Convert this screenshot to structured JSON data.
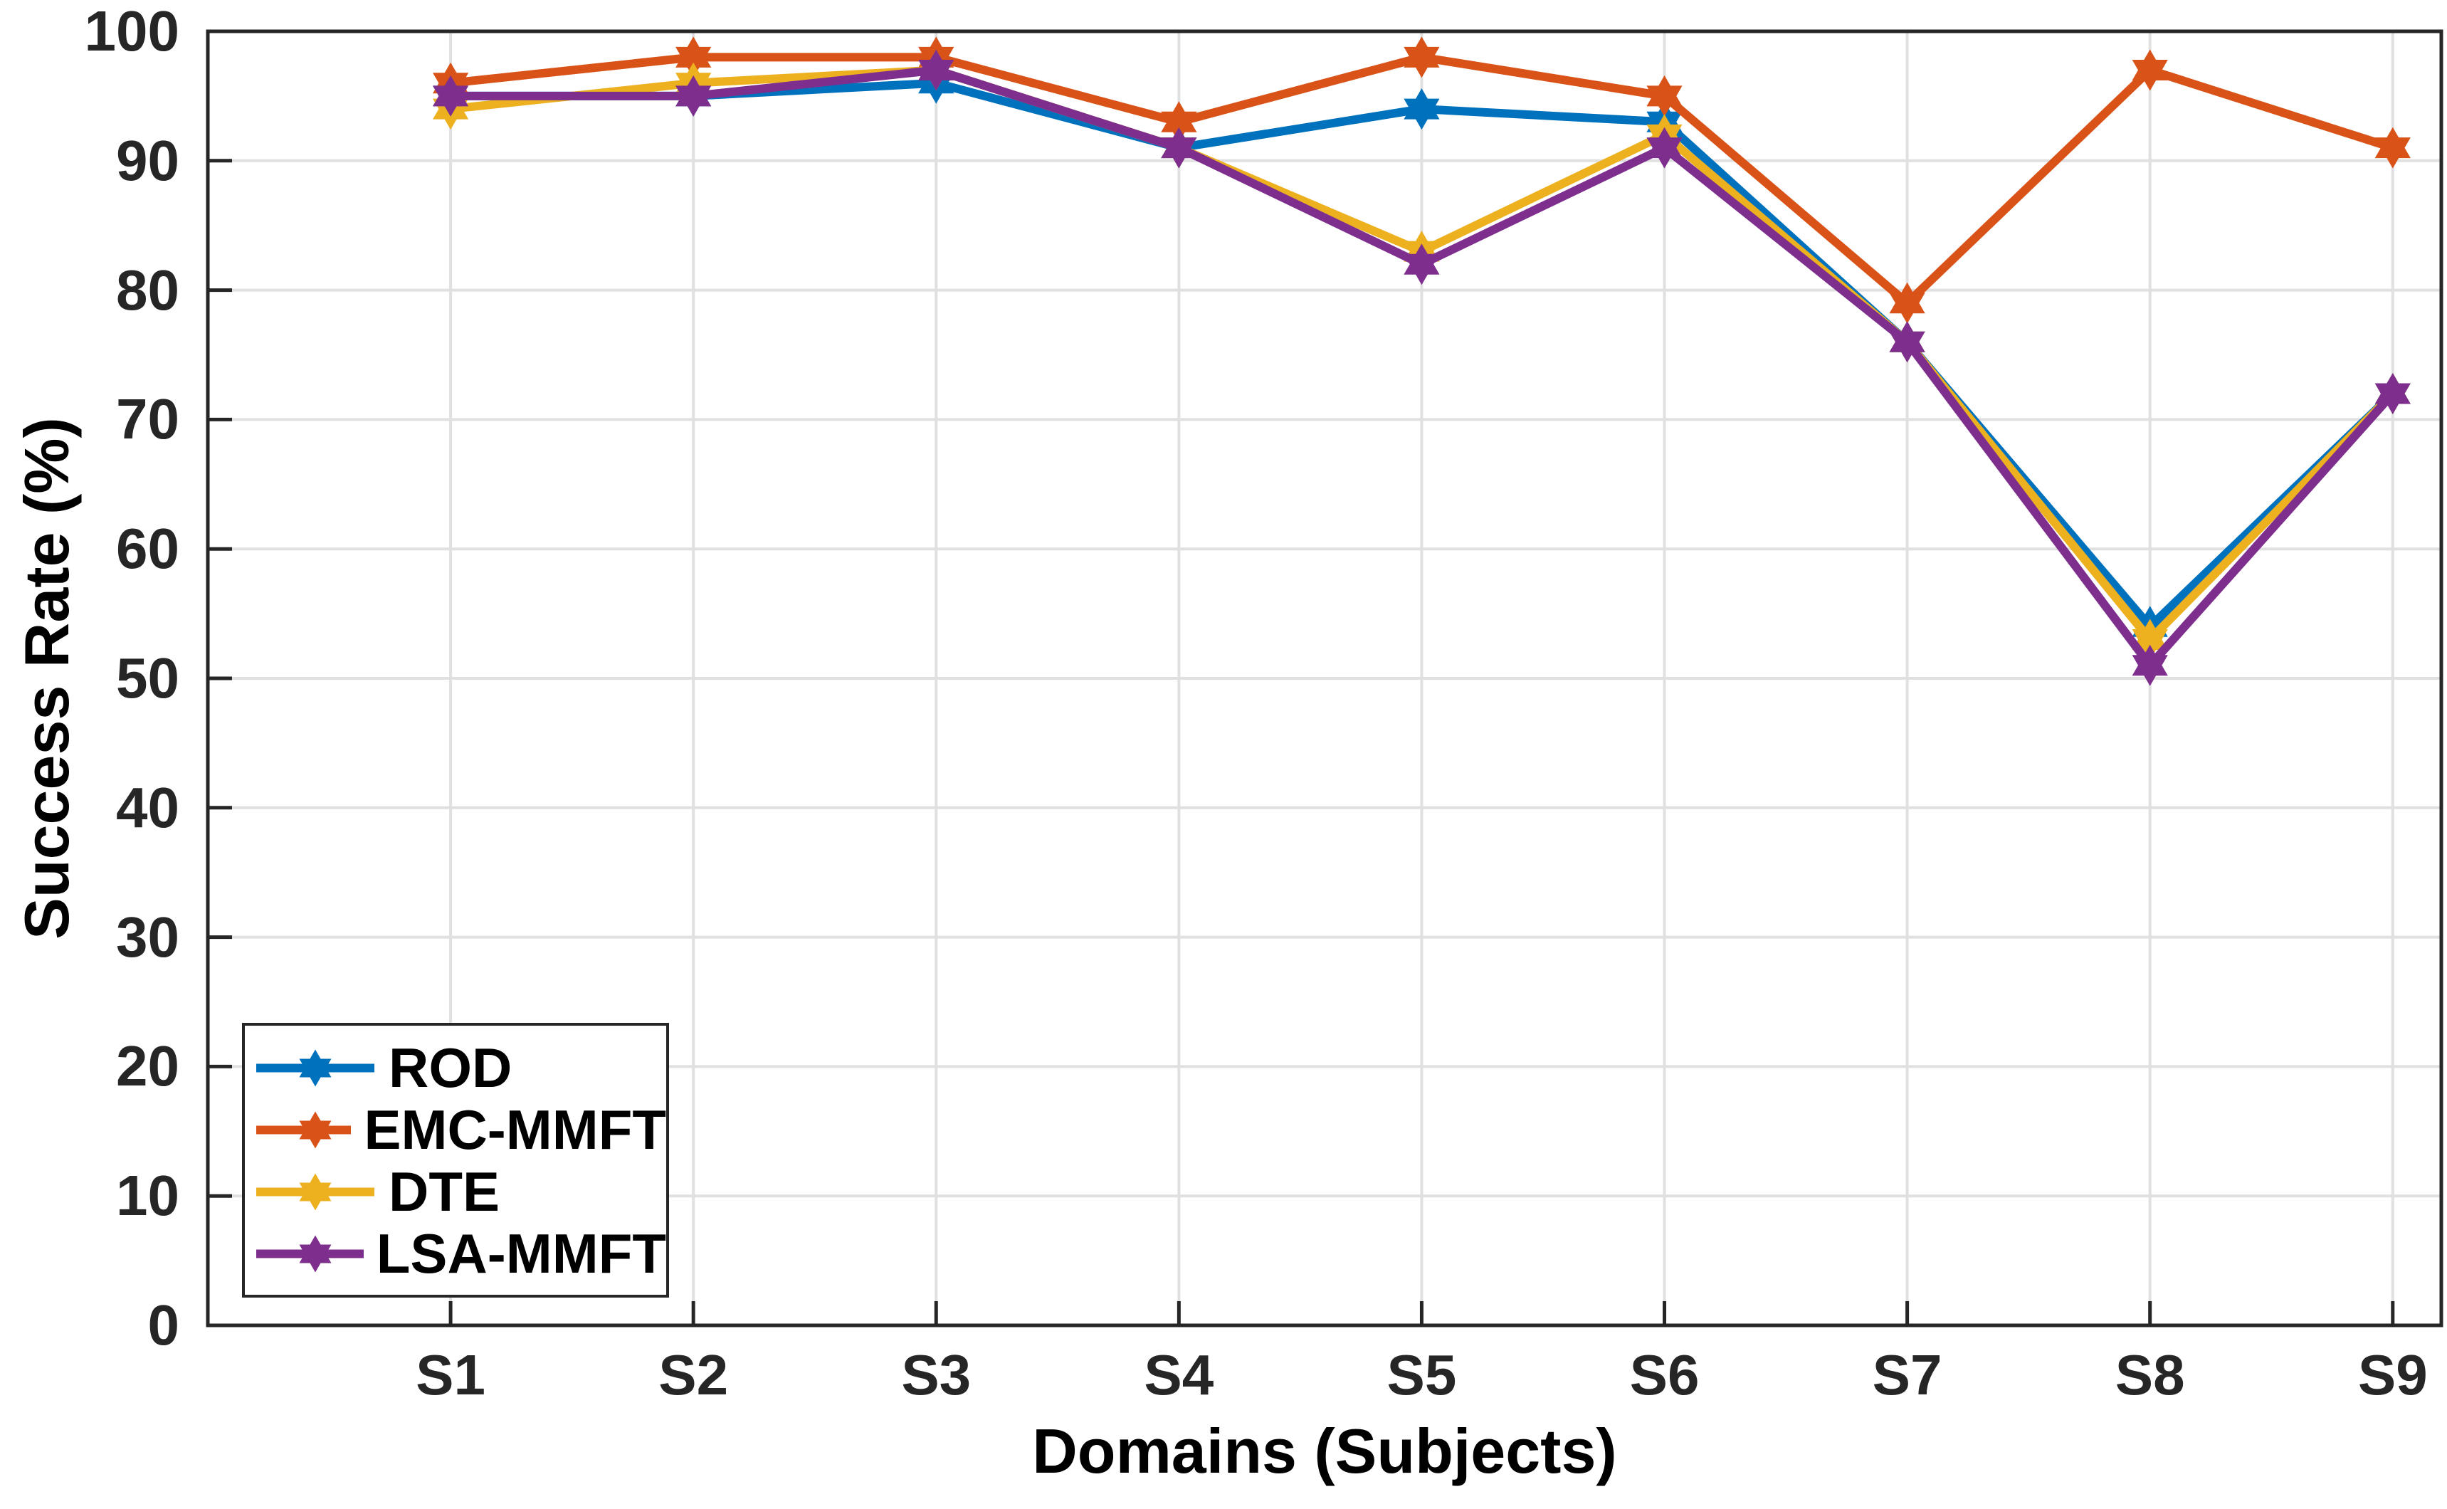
{
  "figure": {
    "background": "#ffffff"
  },
  "axes": {
    "xlabel": "Domains (Subjects)",
    "ylabel": "Success Rate (%)",
    "yticklabels": [
      "0",
      "10",
      "20",
      "30",
      "40",
      "50",
      "60",
      "70",
      "80",
      "90",
      "100"
    ],
    "xticklabels": [
      "S1",
      "S2",
      "S3",
      "S4",
      "S5",
      "S6",
      "S7",
      "S8",
      "S9"
    ],
    "axis_color": "#262626",
    "grid_color": "#e0e0e0",
    "tick_direction": "in"
  },
  "legend": {
    "position": "southwest",
    "entries": [
      {
        "label": "ROD",
        "color": "#0072BD"
      },
      {
        "label": "EMC-MMFT",
        "color": "#D95319"
      },
      {
        "label": "DTE",
        "color": "#EDB120"
      },
      {
        "label": "LSA-MMFT",
        "color": "#7E2F8E"
      }
    ]
  },
  "chart_data": {
    "type": "line",
    "title": "",
    "xlabel": "Domains (Subjects)",
    "ylabel": "Success Rate (%)",
    "categories": [
      "S1",
      "S2",
      "S3",
      "S4",
      "S5",
      "S6",
      "S7",
      "S8",
      "S9"
    ],
    "series": [
      {
        "name": "ROD",
        "color": "#0072BD",
        "marker": "hexagram",
        "values": [
          95,
          95,
          96,
          91,
          94,
          93,
          76,
          54,
          72
        ]
      },
      {
        "name": "EMC-MMFT",
        "color": "#D95319",
        "marker": "hexagram",
        "values": [
          96,
          98,
          98,
          93,
          98,
          95,
          79,
          97,
          91
        ]
      },
      {
        "name": "DTE",
        "color": "#EDB120",
        "marker": "hexagram",
        "values": [
          94,
          96,
          97,
          91,
          83,
          92,
          76,
          53,
          72
        ]
      },
      {
        "name": "LSA-MMFT",
        "color": "#7E2F8E",
        "marker": "hexagram",
        "values": [
          95,
          95,
          97,
          91,
          82,
          91,
          76,
          51,
          72
        ]
      }
    ],
    "ylim": [
      0,
      100
    ],
    "ytick_step": 10,
    "grid": true,
    "legend_position": "southwest"
  }
}
